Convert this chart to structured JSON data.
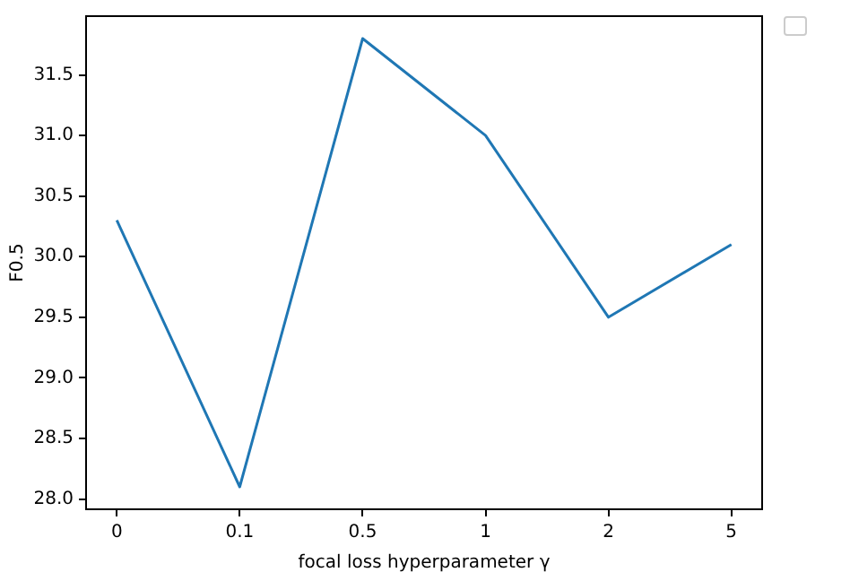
{
  "chart_data": {
    "type": "line",
    "xlabel": "focal loss hyperparameter γ",
    "ylabel": "F0.5",
    "categories": [
      "0",
      "0.1",
      "0.5",
      "1",
      "2",
      "5"
    ],
    "series": [
      {
        "color": "#1f77b4",
        "values": [
          30.3,
          28.1,
          31.8,
          31.0,
          29.5,
          30.1
        ]
      }
    ],
    "ylim": [
      27.915,
      31.985
    ],
    "yticks": [
      {
        "value": 28,
        "label": "28.0"
      },
      28.5,
      {
        "value": 29,
        "label": "29.0"
      },
      29.5,
      {
        "value": 30,
        "label": "30.0"
      },
      30.5,
      {
        "value": 31,
        "label": "31.0"
      },
      31.5
    ],
    "grid": false,
    "marker": "none",
    "line_style": "solid"
  }
}
